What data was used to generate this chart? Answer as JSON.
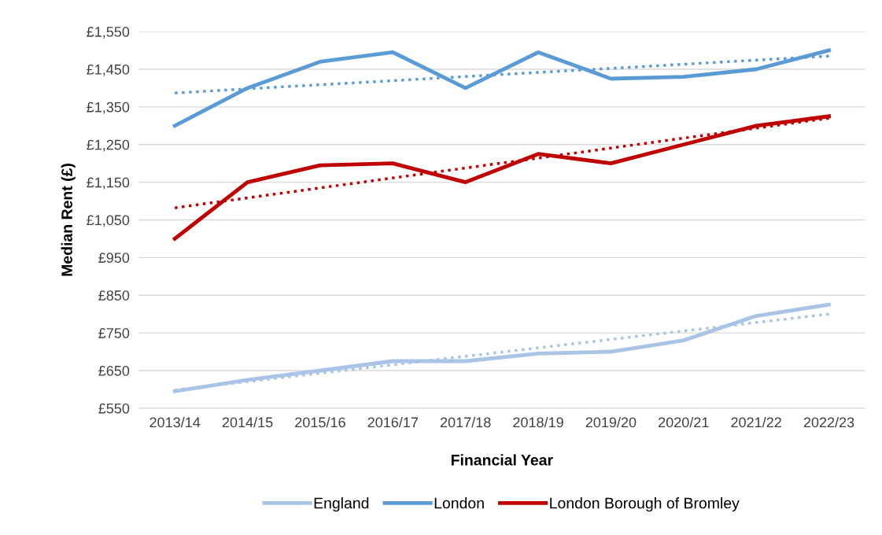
{
  "chart_data": {
    "type": "line",
    "xlabel": "Financial Year",
    "ylabel": "Median Rent (£)",
    "categories": [
      "2013/14",
      "2014/15",
      "2015/16",
      "2016/17",
      "2017/18",
      "2018/19",
      "2019/20",
      "2020/21",
      "2021/22",
      "2022/23"
    ],
    "series": [
      {
        "name": "England",
        "color": "#a9c4e6",
        "values": [
          595,
          625,
          650,
          675,
          675,
          695,
          700,
          730,
          795,
          825
        ]
      },
      {
        "name": "London",
        "color": "#5b9bd5",
        "values": [
          1300,
          1400,
          1470,
          1495,
          1400,
          1495,
          1425,
          1430,
          1450,
          1500
        ]
      },
      {
        "name": "London Borough of Bromley",
        "color": "#c00000",
        "values": [
          1000,
          1150,
          1195,
          1200,
          1150,
          1225,
          1200,
          1250,
          1300,
          1325
        ]
      },
      {
        "color": "#a9c4e6",
        "x": [
          "2013/14",
          "2022/23"
        ],
        "values": [
          598,
          800
        ],
        "line_style": "dotted"
      },
      {
        "color": "#5b9bd5",
        "x": [
          "2013/14",
          "2022/23"
        ],
        "values": [
          1387,
          1485
        ],
        "line_style": "dotted"
      },
      {
        "color": "#c00000",
        "x": [
          "2013/14",
          "2022/23"
        ],
        "values": [
          1082,
          1320
        ],
        "line_style": "dotted"
      }
    ],
    "ylim": [
      550,
      1550
    ],
    "yticks": [
      {
        "value": 550,
        "label": "£550"
      },
      {
        "value": 650,
        "label": "£650"
      },
      {
        "value": 750,
        "label": "£750"
      },
      {
        "value": 850,
        "label": "£850"
      },
      {
        "value": 950,
        "label": "£950"
      },
      {
        "value": 1050,
        "label": "£1,050"
      },
      {
        "value": 1150,
        "label": "£1,150"
      },
      {
        "value": 1250,
        "label": "£1,250"
      },
      {
        "value": 1350,
        "label": "£1,350"
      },
      {
        "value": 1450,
        "label": "£1,450"
      },
      {
        "value": 1550,
        "label": "£1,550"
      }
    ],
    "grid": "y",
    "legend": "bottom",
    "marker": "none",
    "line_style": "solid"
  }
}
